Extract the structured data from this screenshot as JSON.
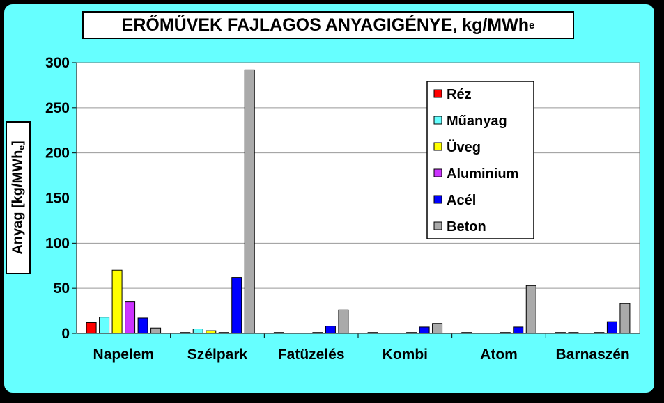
{
  "title_main": "ERŐMŰVEK FAJLAGOS ANYAGIGÉNYE, kg/MWh",
  "title_sub": "e",
  "ylabel_main": "Anyag [kg/MWh",
  "ylabel_sub": "e",
  "ylabel_end": "]",
  "colors": {
    "background": "#000000",
    "panel": "#66ffff",
    "plot_area": "#ffffff",
    "gridline": "#999999"
  },
  "chart_data": {
    "type": "bar",
    "title": "ERŐMŰVEK FAJLAGOS ANYAGIGÉNYE, kg/MWhe",
    "xlabel": "",
    "ylabel": "Anyag [kg/MWhe]",
    "ylim": [
      0,
      300
    ],
    "yticks": [
      "0",
      "50",
      "100",
      "150",
      "200",
      "250",
      "300"
    ],
    "ytick_values": [
      0,
      50,
      100,
      150,
      200,
      250,
      300
    ],
    "grid": true,
    "legend_position": "top-right",
    "categories": [
      "Napelem",
      "Szélpark",
      "Fatüzelés",
      "Kombi",
      "Atom",
      "Barnaszén"
    ],
    "series": [
      {
        "name": "Réz",
        "color": "#ff0000",
        "values": [
          12,
          1,
          1,
          1,
          1,
          1
        ]
      },
      {
        "name": "Műanyag",
        "color": "#66ffff",
        "values": [
          18,
          5,
          0,
          0,
          0,
          1
        ]
      },
      {
        "name": "Üveg",
        "color": "#ffff00",
        "values": [
          70,
          3,
          0,
          0,
          0,
          0
        ]
      },
      {
        "name": "Aluminium",
        "color": "#cc33ff",
        "values": [
          35,
          1,
          1,
          1,
          1,
          1
        ]
      },
      {
        "name": "Acél",
        "color": "#0000ff",
        "values": [
          17,
          62,
          8,
          7,
          7,
          13
        ]
      },
      {
        "name": "Beton",
        "color": "#aaaaaa",
        "values": [
          6,
          292,
          26,
          11,
          53,
          33
        ]
      }
    ]
  }
}
